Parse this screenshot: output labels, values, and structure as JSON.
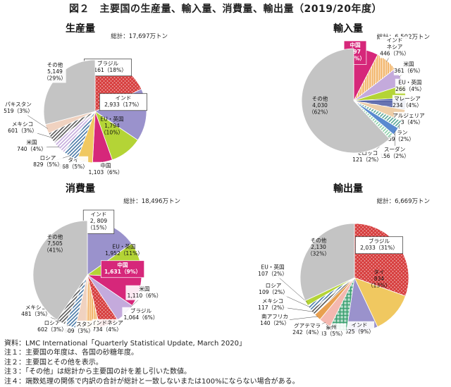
{
  "figure_title": "図２　主要国の生産量、輸入量、消費量、輸出量（2019/20年度）",
  "notes": [
    "資料：LMC International「Quarterly Statistical Update, March 2020」",
    "注１：主要国の年度は、各国の砂糖年度。",
    "注２：主要国とその他を表示。",
    "注３：「その他」は総計から主要国の計を差し引いた数値。",
    "注４：端数処理の関係で内訳の合計が総計と一致しないまたは100%にならない場合がある。"
  ],
  "colors": {
    "brazil": "#d63a3a",
    "india": "#9a92cc",
    "eu": "#b4d436",
    "china": "#d6277a",
    "thai": "#f0c860",
    "russia": "#4a7aa8",
    "usa": "#c4aadc",
    "mexico": "#5a5a5a",
    "pakistan": "#f0d2c0",
    "other": "#c4c4c4",
    "indonesia": "#f0a850",
    "malaysia": "#3a4a9a",
    "algeria": "#eecea8",
    "iran": "#5aa898",
    "sudan": "#5a8ad0",
    "morocco": "#8ad0a8",
    "guatemala": "#f4b8b0",
    "sa": "#e8a050",
    "aus": "#3aa070"
  },
  "chart_data": [
    {
      "type": "pie",
      "title": "生産量",
      "total_label": "総計：17,697万トン",
      "slices": [
        {
          "name": "ブラジル",
          "value": 3161,
          "pct": "18%",
          "label": [
            "ブラジル",
            "3,161（18%）"
          ],
          "color": "#d63a3a",
          "pattern": "cross"
        },
        {
          "name": "インド",
          "value": 2933,
          "pct": "17%",
          "label": [
            "インド",
            "2,933（17%）"
          ],
          "color": "#9a92cc",
          "pattern": "solid"
        },
        {
          "name": "EU・英国",
          "value": 1794,
          "pct": "10%",
          "label": [
            "EU・英国",
            "1,794",
            "（10%）"
          ],
          "color": "#b4d436",
          "pattern": "solid"
        },
        {
          "name": "中国",
          "value": 1103,
          "pct": "6%",
          "label": [
            "中国",
            "1,103（6%）"
          ],
          "color": "#d6277a",
          "pattern": "solid"
        },
        {
          "name": "タイ",
          "value": 868,
          "pct": "5%",
          "label": [
            "タイ",
            "868（5%）"
          ],
          "color": "#f0c860",
          "pattern": "solid"
        },
        {
          "name": "ロシア",
          "value": 829,
          "pct": "5%",
          "label": [
            "ロシア",
            "829（5%）"
          ],
          "color": "#4a7aa8",
          "pattern": "diag"
        },
        {
          "name": "米国",
          "value": 740,
          "pct": "4%",
          "label": [
            "米国",
            "740（4%）"
          ],
          "color": "#c4aadc",
          "pattern": "diag"
        },
        {
          "name": "メキシコ",
          "value": 601,
          "pct": "3%",
          "label": [
            "メキシコ",
            "601（3%）"
          ],
          "color": "#5a5a5a",
          "pattern": "diag"
        },
        {
          "name": "パキスタン",
          "value": 519,
          "pct": "3%",
          "label": [
            "パキスタン",
            "519（3%）"
          ],
          "color": "#f0d2c0",
          "pattern": "solid"
        },
        {
          "name": "その他",
          "value": 5149,
          "pct": "29%",
          "label": [
            "その他",
            "5,149",
            "（29%）"
          ],
          "color": "#c4c4c4",
          "pattern": "solid"
        }
      ]
    },
    {
      "type": "pie",
      "title": "輸入量",
      "total_label": "総計：6,502万トン",
      "slices": [
        {
          "name": "中国",
          "value": 497,
          "pct": "8%",
          "label": [
            "中国",
            "497",
            "（8%）"
          ],
          "color": "#d6277a",
          "pattern": "solid"
        },
        {
          "name": "インドネシア",
          "value": 446,
          "pct": "7%",
          "label": [
            "インド",
            "ネシア",
            "446（7%）"
          ],
          "color": "#f0a850",
          "pattern": "vline"
        },
        {
          "name": "米国",
          "value": 361,
          "pct": "6%",
          "label": [
            "米国",
            "361（6%）"
          ],
          "color": "#c4aadc",
          "pattern": "solid"
        },
        {
          "name": "EU・英国",
          "value": 266,
          "pct": "4%",
          "label": [
            "EU・英国",
            "266（4%）"
          ],
          "color": "#b4d436",
          "pattern": "solid"
        },
        {
          "name": "マレーシア",
          "value": 234,
          "pct": "4%",
          "label": [
            "マレーシア",
            "234（4%）"
          ],
          "color": "#3a4a9a",
          "pattern": "hline"
        },
        {
          "name": "アルジェリア",
          "value": 233,
          "pct": "4%",
          "label": [
            "アルジェリア",
            "233（4%）"
          ],
          "color": "#eecea8",
          "pattern": "solid"
        },
        {
          "name": "イラン",
          "value": 159,
          "pct": "2%",
          "label": [
            "イラン",
            "159（2%）"
          ],
          "color": "#5aa898",
          "pattern": "diag"
        },
        {
          "name": "スーダン",
          "value": 156,
          "pct": "2%",
          "label": [
            "スーダン",
            "156（2%）"
          ],
          "color": "#5a8ad0",
          "pattern": "solid"
        },
        {
          "name": "モロッコ",
          "value": 121,
          "pct": "2%",
          "label": [
            "モロッコ",
            "121（2%）"
          ],
          "color": "#8ad0a8",
          "pattern": "diag"
        },
        {
          "name": "その他",
          "value": 4030,
          "pct": "62%",
          "label": [
            "その他",
            "4,030",
            "（62%）"
          ],
          "color": "#c4c4c4",
          "pattern": "solid"
        }
      ]
    },
    {
      "type": "pie",
      "title": "消費量",
      "total_label": "総計：18,496万トン",
      "slices": [
        {
          "name": "インド",
          "value": 2809,
          "pct": "15%",
          "label": [
            "インド",
            "2, 809",
            "（15%）"
          ],
          "color": "#9a92cc",
          "pattern": "solid"
        },
        {
          "name": "EU・英国",
          "value": 1952,
          "pct": "11%",
          "label": [
            "EU・英国",
            "1,952（11%）"
          ],
          "color": "#b4d436",
          "pattern": "solid"
        },
        {
          "name": "中国",
          "value": 1631,
          "pct": "9%",
          "label": [
            "中国",
            "1,631（9%）"
          ],
          "color": "#d6277a",
          "pattern": "solid"
        },
        {
          "name": "米国",
          "value": 1110,
          "pct": "6%",
          "label": [
            "米国",
            "1,110（6%）"
          ],
          "color": "#c4aadc",
          "pattern": "solid"
        },
        {
          "name": "ブラジル",
          "value": 1064,
          "pct": "6%",
          "label": [
            "ブラジル",
            "1,064（6%）"
          ],
          "color": "#d63a3a",
          "pattern": "cross"
        },
        {
          "name": "インドネシア",
          "value": 734,
          "pct": "4%",
          "label": [
            "インドネシア",
            "734（4%）"
          ],
          "color": "#f0a850",
          "pattern": "vline"
        },
        {
          "name": "パキスタン",
          "value": 609,
          "pct": "3%",
          "label": [
            "パキスタン",
            "609（3%）"
          ],
          "color": "#f0d2c0",
          "pattern": "solid"
        },
        {
          "name": "ロシア",
          "value": 602,
          "pct": "3%",
          "label": [
            "ロシア",
            "602（3%）"
          ],
          "color": "#4a7aa8",
          "pattern": "diag"
        },
        {
          "name": "メキシコ",
          "value": 481,
          "pct": "3%",
          "label": [
            "メキシコ",
            "481（3%）"
          ],
          "color": "#5a5a5a",
          "pattern": "diag"
        },
        {
          "name": "その他",
          "value": 7505,
          "pct": "41%",
          "label": [
            "その他",
            "7,505",
            "（41%）"
          ],
          "color": "#c4c4c4",
          "pattern": "solid"
        }
      ]
    },
    {
      "type": "pie",
      "title": "輸出量",
      "total_label": "総計：6,669万トン",
      "slices": [
        {
          "name": "ブラジル",
          "value": 2033,
          "pct": "31%",
          "label": [
            "ブラジル",
            "2,033（31%）"
          ],
          "color": "#d63a3a",
          "pattern": "cross"
        },
        {
          "name": "タイ",
          "value": 834,
          "pct": "13%",
          "label": [
            "タイ",
            "834",
            "（13%）"
          ],
          "color": "#f0c860",
          "pattern": "solid"
        },
        {
          "name": "インド",
          "value": 625,
          "pct": "9%",
          "label": [
            "インド",
            "625（9%）"
          ],
          "color": "#9a92cc",
          "pattern": "solid"
        },
        {
          "name": "豪州",
          "value": 333,
          "pct": "5%",
          "label": [
            "豪州",
            "333（5%）"
          ],
          "color": "#3aa070",
          "pattern": "grid"
        },
        {
          "name": "グアテマラ",
          "value": 242,
          "pct": "4%",
          "label": [
            "グアテマラ",
            "242（4%）"
          ],
          "color": "#f4b8b0",
          "pattern": "solid"
        },
        {
          "name": "南アフリカ",
          "value": 140,
          "pct": "2%",
          "label": [
            "南アフリカ",
            "140（2%）"
          ],
          "color": "#e8a050",
          "pattern": "solid"
        },
        {
          "name": "メキシコ",
          "value": 117,
          "pct": "2%",
          "label": [
            "メキシコ",
            "117（2%）"
          ],
          "color": "#5a5a5a",
          "pattern": "diag"
        },
        {
          "name": "ロシア",
          "value": 109,
          "pct": "2%",
          "label": [
            "ロシア",
            "109（2%）"
          ],
          "color": "#4a7aa8",
          "pattern": "diag"
        },
        {
          "name": "EU・英国",
          "value": 107,
          "pct": "2%",
          "label": [
            "EU・英国",
            "107（2%）"
          ],
          "color": "#b4d436",
          "pattern": "solid"
        },
        {
          "name": "その他",
          "value": 2130,
          "pct": "32%",
          "label": [
            "その他",
            "2,130",
            "（32%）"
          ],
          "color": "#c4c4c4",
          "pattern": "solid"
        }
      ]
    }
  ]
}
